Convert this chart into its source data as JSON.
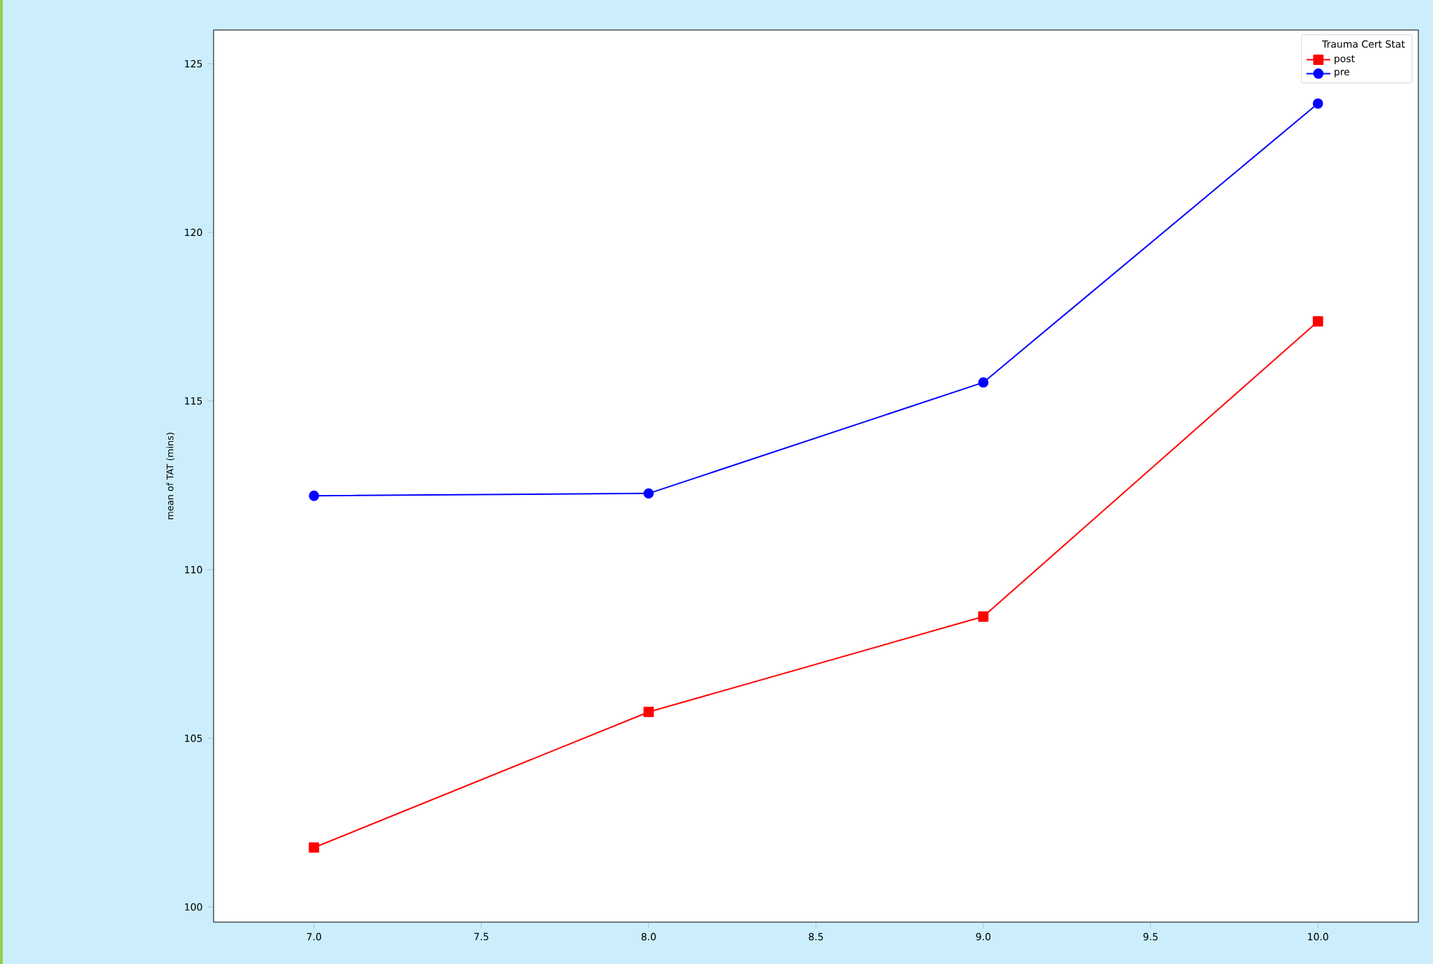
{
  "chart_data": {
    "type": "line",
    "ylabel": "mean of TAT (mins)",
    "legend_title": "Trauma Cert Stat",
    "x": [
      7.0,
      8.0,
      9.0,
      10.0
    ],
    "series": [
      {
        "name": "post",
        "color": "#ff0000",
        "marker": "square",
        "values": [
          101.76,
          105.78,
          108.61,
          117.36
        ]
      },
      {
        "name": "pre",
        "color": "#0000ff",
        "marker": "circle",
        "values": [
          112.19,
          112.26,
          115.55,
          123.82
        ]
      }
    ],
    "xlim": [
      6.7,
      10.3
    ],
    "ylim": [
      99.55,
      126.0
    ],
    "xticks": [
      {
        "value": 7.0,
        "label": "7.0"
      },
      {
        "value": 7.5,
        "label": "7.5"
      },
      {
        "value": 8.0,
        "label": "8.0"
      },
      {
        "value": 8.5,
        "label": "8.5"
      },
      {
        "value": 9.0,
        "label": "9.0"
      },
      {
        "value": 9.5,
        "label": "9.5"
      },
      {
        "value": 10.0,
        "label": "10.0"
      }
    ],
    "yticks": [
      100,
      105,
      110,
      115,
      120,
      125
    ],
    "legend": "top right",
    "grid": false,
    "line_style": "solid"
  }
}
